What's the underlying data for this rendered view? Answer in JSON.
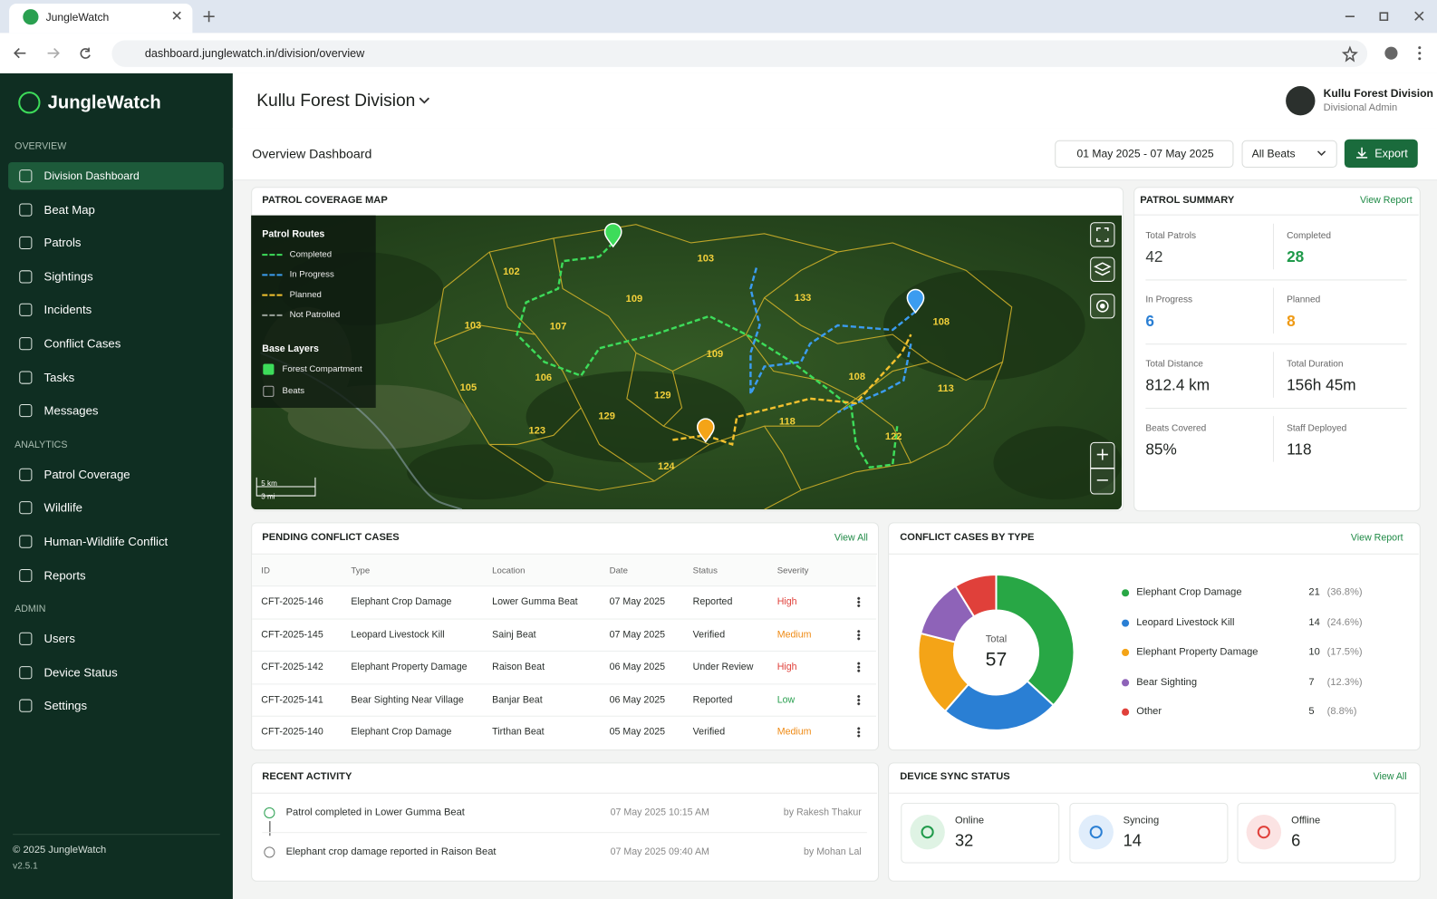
{
  "browser": {
    "tab_title": "JungleWatch",
    "url": "dashboard.junglewatch.in/division/overview"
  },
  "sidebar": {
    "brand": "JungleWatch",
    "sections": [
      {
        "title": "OVERVIEW",
        "items": [
          "Division Dashboard",
          "Beat Map",
          "Patrols",
          "Sightings",
          "Incidents",
          "Conflict Cases",
          "Tasks",
          "Messages"
        ]
      },
      {
        "title": "ANALYTICS",
        "items": [
          "Patrol Coverage",
          "Wildlife",
          "Human-Wildlife Conflict",
          "Reports"
        ]
      },
      {
        "title": "ADMIN",
        "items": [
          "Users",
          "Device Status",
          "Settings"
        ]
      }
    ],
    "copyright": "© 2025 JungleWatch",
    "version": "v2.5.1"
  },
  "header": {
    "division": "Kullu Forest Division",
    "user_name": "Kullu Forest Division",
    "user_role": "Divisional Admin"
  },
  "toolbar": {
    "title": "Overview Dashboard",
    "date_range": "01 May 2025 - 07 May 2025",
    "beat_filter": "All Beats",
    "export": "Export"
  },
  "map": {
    "title": "PATROL COVERAGE MAP",
    "routes_title": "Patrol Routes",
    "routes": [
      {
        "name": "Completed",
        "color": "#3ddc5a"
      },
      {
        "name": "In Progress",
        "color": "#3b9cf0"
      },
      {
        "name": "Planned",
        "color": "#f2c12e"
      },
      {
        "name": "Not Patrolled",
        "color": "#9aa39c"
      }
    ],
    "layers_title": "Base Layers",
    "layers": [
      {
        "name": "Forest Compartment",
        "checked": true
      },
      {
        "name": "Beats",
        "checked": false
      }
    ],
    "compartments": [
      "102",
      "103",
      "109",
      "133",
      "108",
      "103",
      "107",
      "109",
      "108",
      "113",
      "105",
      "106",
      "129",
      "129",
      "123",
      "118",
      "122",
      "124"
    ],
    "scale": [
      "5 km",
      "3 mi"
    ]
  },
  "patrol_summary": {
    "title": "PATROL SUMMARY",
    "link": "View Report",
    "stats": [
      {
        "label": "Total Patrols",
        "value": "42",
        "color": "#3a3f3c"
      },
      {
        "label": "Completed",
        "value": "28",
        "color": "#1f9a4a"
      },
      {
        "label": "In Progress",
        "value": "6",
        "color": "#2a7fd4"
      },
      {
        "label": "Planned",
        "value": "8",
        "color": "#ef9a14"
      },
      {
        "label": "Total Distance",
        "value": "812.4 km",
        "color": "#1e2320"
      },
      {
        "label": "Total Duration",
        "value": "156h 45m",
        "color": "#1e2320"
      },
      {
        "label": "Beats Covered",
        "value": "85%",
        "color": "#1e2320"
      },
      {
        "label": "Staff Deployed",
        "value": "118",
        "color": "#1e2320"
      }
    ]
  },
  "pending_cases": {
    "title": "PENDING CONFLICT CASES",
    "link": "View All",
    "columns": [
      "ID",
      "Type",
      "Location",
      "Date",
      "Status",
      "Severity"
    ],
    "rows": [
      {
        "id": "CFT-2025-146",
        "type": "Elephant Crop Damage",
        "location": "Lower Gumma Beat",
        "date": "07 May 2025",
        "status": "Reported",
        "severity": "High",
        "severity_color": "#e0403a"
      },
      {
        "id": "CFT-2025-145",
        "type": "Leopard Livestock Kill",
        "location": "Sainj Beat",
        "date": "07 May 2025",
        "status": "Verified",
        "severity": "Medium",
        "severity_color": "#ef8a14"
      },
      {
        "id": "CFT-2025-142",
        "type": "Elephant Property Damage",
        "location": "Raison Beat",
        "date": "06 May 2025",
        "status": "Under Review",
        "severity": "High",
        "severity_color": "#e0403a"
      },
      {
        "id": "CFT-2025-141",
        "type": "Bear Sighting Near Village",
        "location": "Banjar Beat",
        "date": "06 May 2025",
        "status": "Reported",
        "severity": "Low",
        "severity_color": "#2aa050"
      },
      {
        "id": "CFT-2025-140",
        "type": "Elephant Crop Damage",
        "location": "Tirthan Beat",
        "date": "05 May 2025",
        "status": "Verified",
        "severity": "Medium",
        "severity_color": "#ef8a14"
      }
    ]
  },
  "conflict_types": {
    "type": "pie",
    "title": "CONFLICT CASES BY TYPE",
    "link": "View Report",
    "total_label": "Total",
    "total": 57,
    "items": [
      {
        "name": "Elephant Crop Damage",
        "count": 21,
        "share": "(36.8%)",
        "color": "#28a745"
      },
      {
        "name": "Leopard Livestock Kill",
        "count": 14,
        "share": "(24.6%)",
        "color": "#2a7fd4"
      },
      {
        "name": "Elephant Property Damage",
        "count": 10,
        "share": "(17.5%)",
        "color": "#f4a417"
      },
      {
        "name": "Bear Sighting",
        "count": 7,
        "share": "(12.3%)",
        "color": "#8e63b8"
      },
      {
        "name": "Other",
        "count": 5,
        "share": "(8.8%)",
        "color": "#e0403a"
      }
    ]
  },
  "recent_activity": {
    "title": "RECENT ACTIVITY",
    "items": [
      {
        "text": "Patrol completed in Lower Gumma Beat",
        "time": "07 May 2025 10:15 AM",
        "by": "by Rakesh Thakur"
      },
      {
        "text": "Elephant crop damage reported in Raison Beat",
        "time": "07 May 2025 09:40 AM",
        "by": "by Mohan Lal"
      }
    ]
  },
  "device_sync": {
    "title": "DEVICE SYNC STATUS",
    "link": "View All",
    "items": [
      {
        "label": "Online",
        "value": "32",
        "color": "#1f9a4a",
        "bg": "#dff3e4"
      },
      {
        "label": "Syncing",
        "value": "14",
        "color": "#2a7fd4",
        "bg": "#e0edfb"
      },
      {
        "label": "Offline",
        "value": "6",
        "color": "#e0403a",
        "bg": "#fbe3e3"
      }
    ]
  }
}
